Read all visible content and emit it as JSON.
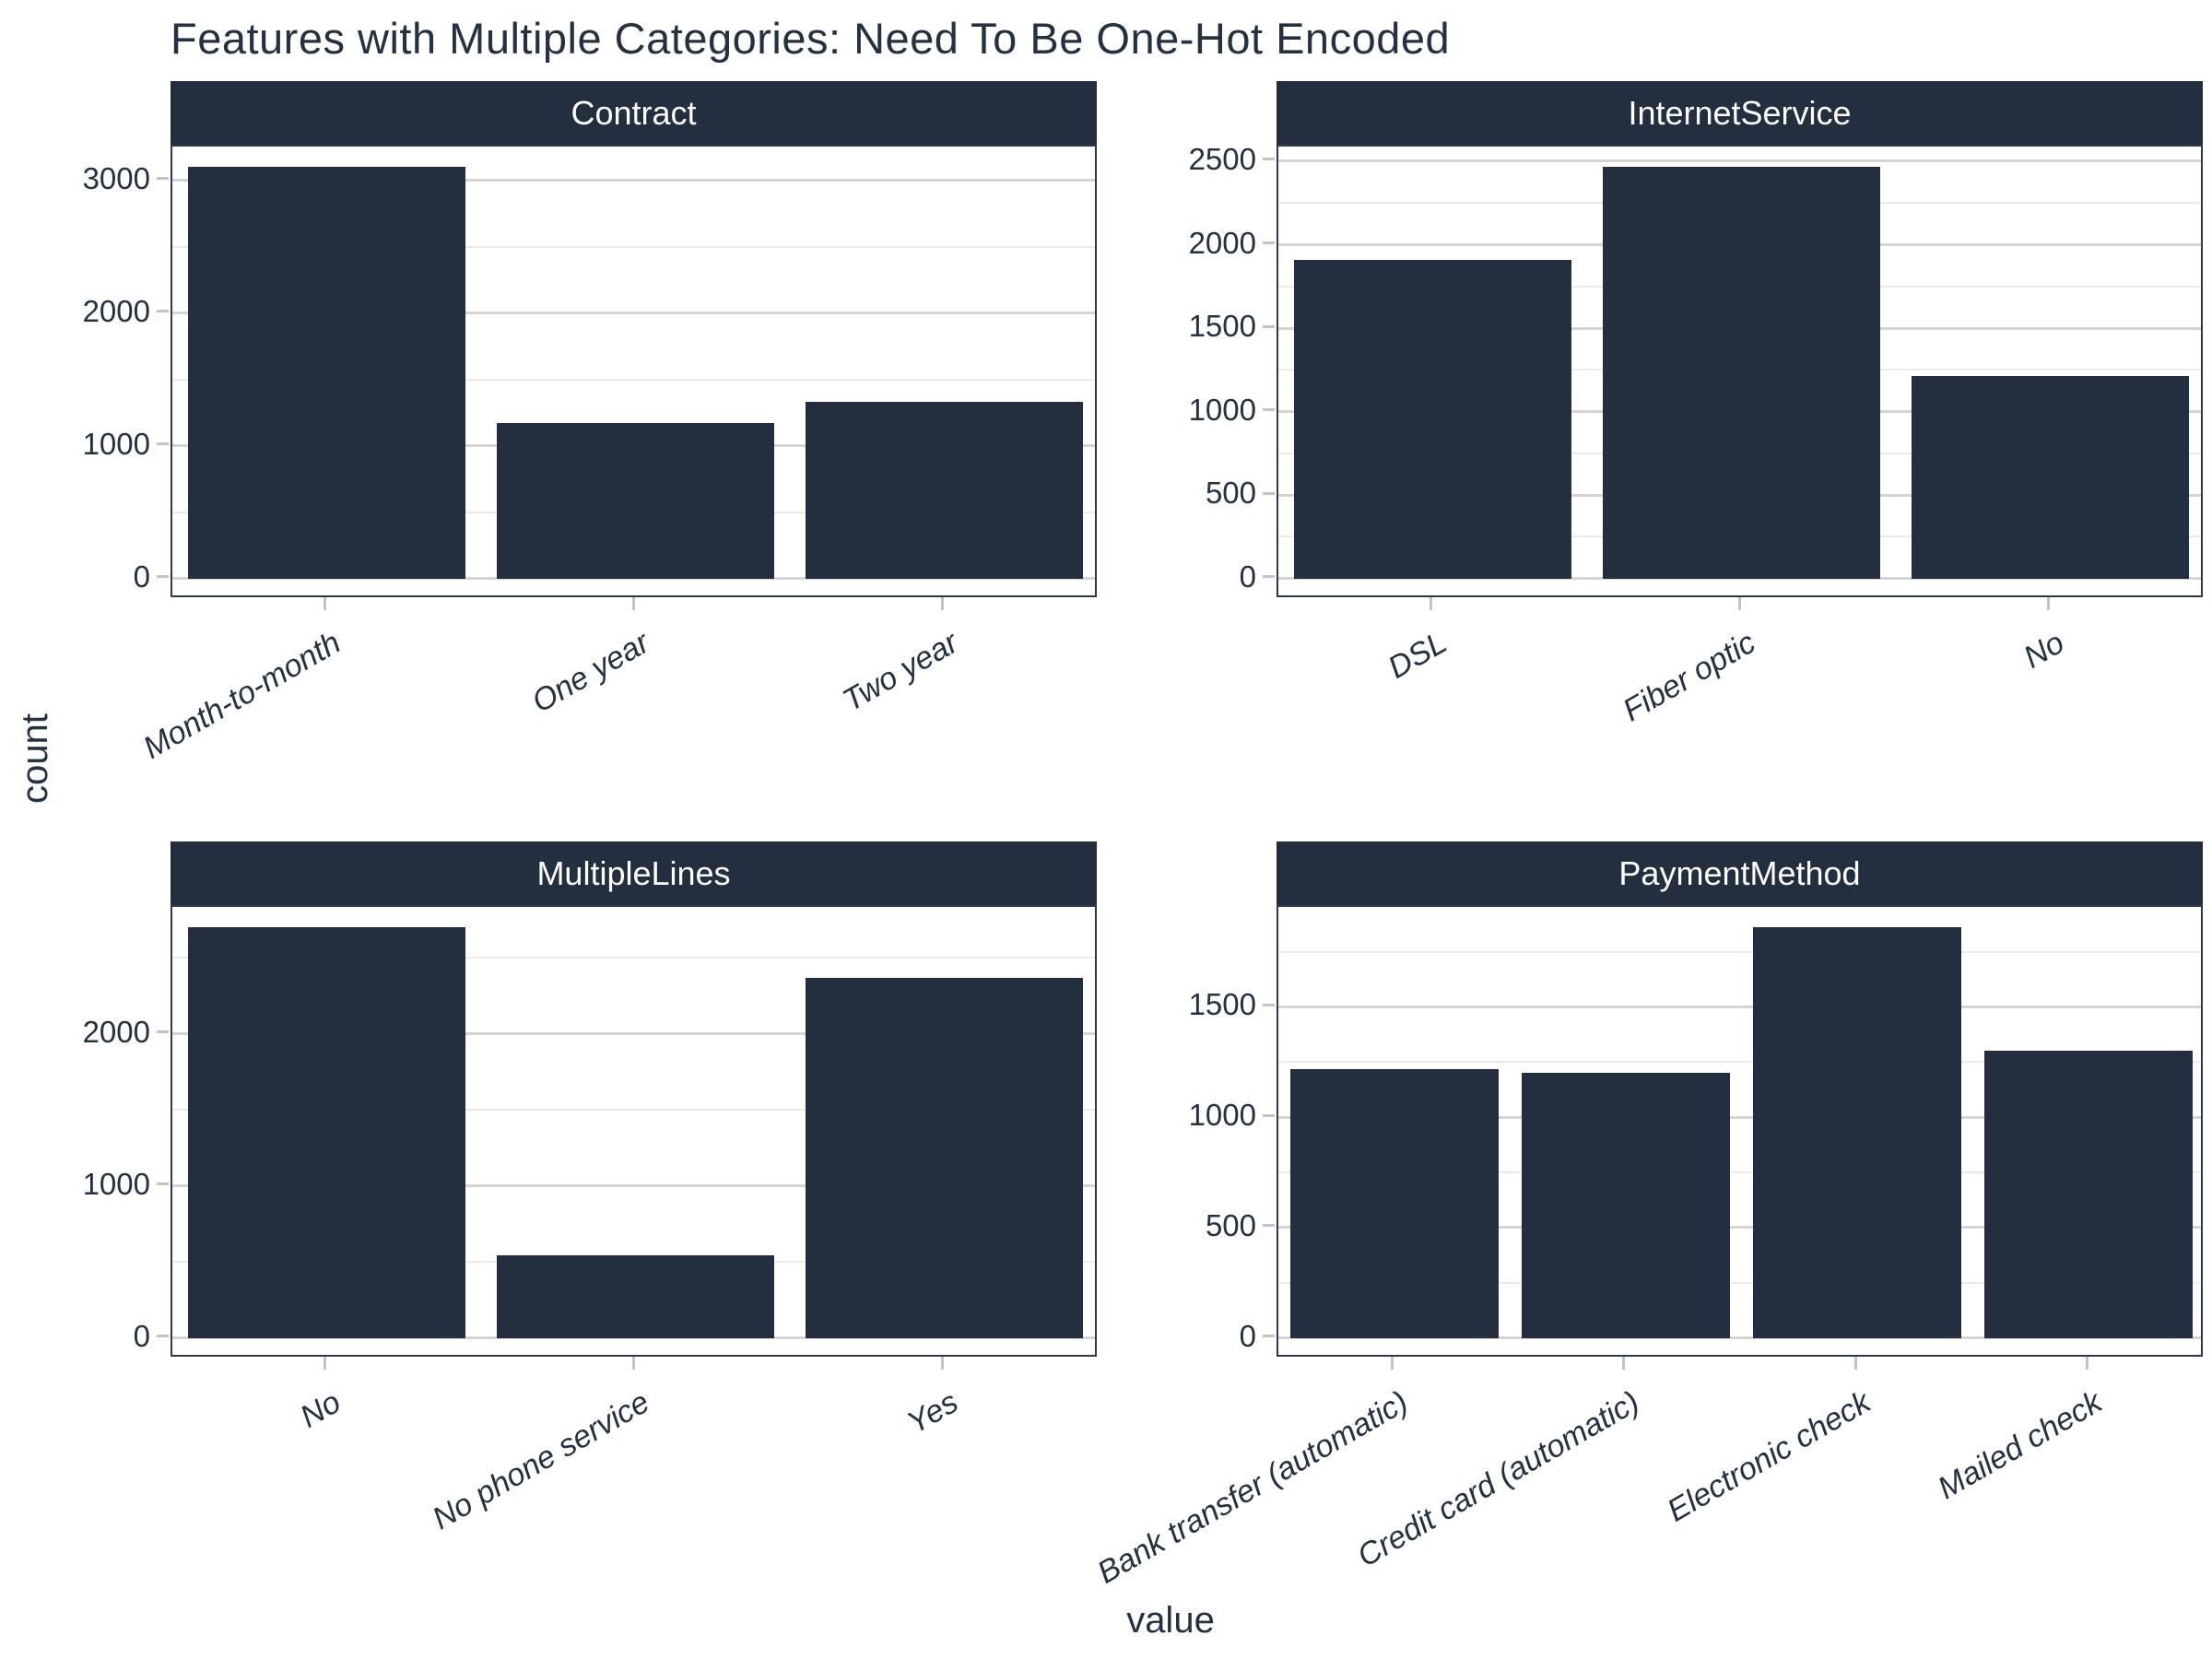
{
  "title": "Features with Multiple Categories: Need To Be One-Hot Encoded",
  "x_axis_label": "value",
  "y_axis_label": "count",
  "colors": {
    "bar": "#232E3E",
    "strip_background": "#232E3E",
    "strip_text": "#FFFFFF",
    "text": "#243142",
    "grid_major": "#D4D4D4",
    "grid_minor": "#EAEAEA",
    "panel_border": "#2D3A4A",
    "tick": "#C0C4C8",
    "background": "#FFFFFF"
  },
  "chart_data": [
    {
      "type": "bar",
      "facet": "Contract",
      "categories": [
        "Month-to-month",
        "One year",
        "Two year"
      ],
      "values": [
        3100,
        1170,
        1330
      ],
      "yticks": [
        0,
        1000,
        2000,
        3000
      ],
      "ylim": [
        0,
        3255
      ],
      "grid": "major+minor",
      "legend": "none"
    },
    {
      "type": "bar",
      "facet": "InternetService",
      "categories": [
        "DSL",
        "Fiber optic",
        "No"
      ],
      "values": [
        1910,
        2465,
        1215
      ],
      "yticks": [
        0,
        500,
        1000,
        1500,
        2000,
        2500
      ],
      "ylim": [
        0,
        2590
      ],
      "grid": "major+minor",
      "legend": "none"
    },
    {
      "type": "bar",
      "facet": "MultipleLines",
      "categories": [
        "No",
        "No phone service",
        "Yes"
      ],
      "values": [
        2700,
        545,
        2370
      ],
      "yticks": [
        0,
        1000,
        2000
      ],
      "ylim": [
        0,
        2835
      ],
      "grid": "major+minor",
      "legend": "none"
    },
    {
      "type": "bar",
      "facet": "PaymentMethod",
      "categories": [
        "Bank transfer (automatic)",
        "Credit card (automatic)",
        "Electronic check",
        "Mailed check"
      ],
      "values": [
        1220,
        1200,
        1860,
        1300
      ],
      "yticks": [
        0,
        500,
        1000,
        1500
      ],
      "ylim": [
        0,
        1955
      ],
      "grid": "major+minor",
      "legend": "none"
    }
  ]
}
